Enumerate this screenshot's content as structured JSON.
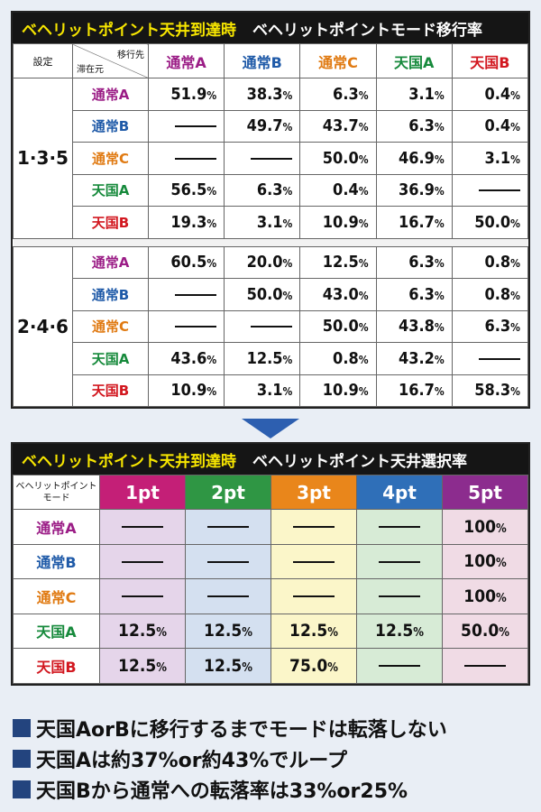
{
  "table1": {
    "title_left": "ベヘリットポイント天井到達時",
    "title_right": "ベヘリットポイントモード移行率",
    "header_setting": "設定",
    "header_to": "移行先",
    "header_from": "滞在元",
    "columns": [
      "通常A",
      "通常B",
      "通常C",
      "天国A",
      "天国B"
    ],
    "groups": [
      {
        "setting": "1·3·5",
        "rows": [
          {
            "mode": "通常A",
            "values": [
              "51.9",
              "38.3",
              "6.3",
              "3.1",
              "0.4"
            ]
          },
          {
            "mode": "通常B",
            "values": [
              "",
              "49.7",
              "43.7",
              "6.3",
              "0.4"
            ]
          },
          {
            "mode": "通常C",
            "values": [
              "",
              "",
              "50.0",
              "46.9",
              "3.1"
            ]
          },
          {
            "mode": "天国A",
            "values": [
              "56.5",
              "6.3",
              "0.4",
              "36.9",
              ""
            ]
          },
          {
            "mode": "天国B",
            "values": [
              "19.3",
              "3.1",
              "10.9",
              "16.7",
              "50.0"
            ]
          }
        ]
      },
      {
        "setting": "2·4·6",
        "rows": [
          {
            "mode": "通常A",
            "values": [
              "60.5",
              "20.0",
              "12.5",
              "6.3",
              "0.8"
            ]
          },
          {
            "mode": "通常B",
            "values": [
              "",
              "50.0",
              "43.0",
              "6.3",
              "0.8"
            ]
          },
          {
            "mode": "通常C",
            "values": [
              "",
              "",
              "50.0",
              "43.8",
              "6.3"
            ]
          },
          {
            "mode": "天国A",
            "values": [
              "43.6",
              "12.5",
              "0.8",
              "43.2",
              ""
            ]
          },
          {
            "mode": "天国B",
            "values": [
              "10.9",
              "3.1",
              "10.9",
              "16.7",
              "58.3"
            ]
          }
        ]
      }
    ]
  },
  "table2": {
    "title_left": "ベヘリットポイント天井到達時",
    "title_right": "ベヘリットポイント天井選択率",
    "header_mode_line1": "ベヘリットポイント",
    "header_mode_line2": "モード",
    "columns": [
      "1pt",
      "2pt",
      "3pt",
      "4pt",
      "5pt"
    ],
    "rows": [
      {
        "mode": "通常A",
        "values": [
          "",
          "",
          "",
          "",
          "100"
        ]
      },
      {
        "mode": "通常B",
        "values": [
          "",
          "",
          "",
          "",
          "100"
        ]
      },
      {
        "mode": "通常C",
        "values": [
          "",
          "",
          "",
          "",
          "100"
        ]
      },
      {
        "mode": "天国A",
        "values": [
          "12.5",
          "12.5",
          "12.5",
          "12.5",
          "50.0"
        ]
      },
      {
        "mode": "天国B",
        "values": [
          "12.5",
          "12.5",
          "75.0",
          "",
          ""
        ]
      }
    ]
  },
  "percent_sign": "%",
  "notes": [
    "天国AorBに移行するまでモードは転落しない",
    "天国Aは約37%or約43%でループ",
    "天国Bから通常への転落率は33%or25%"
  ],
  "colors": {
    "tsA": "#9b1d86",
    "tsB": "#1f5aa8",
    "tsC": "#e07a12",
    "tgA": "#178a3c",
    "tgB": "#d2171f"
  }
}
